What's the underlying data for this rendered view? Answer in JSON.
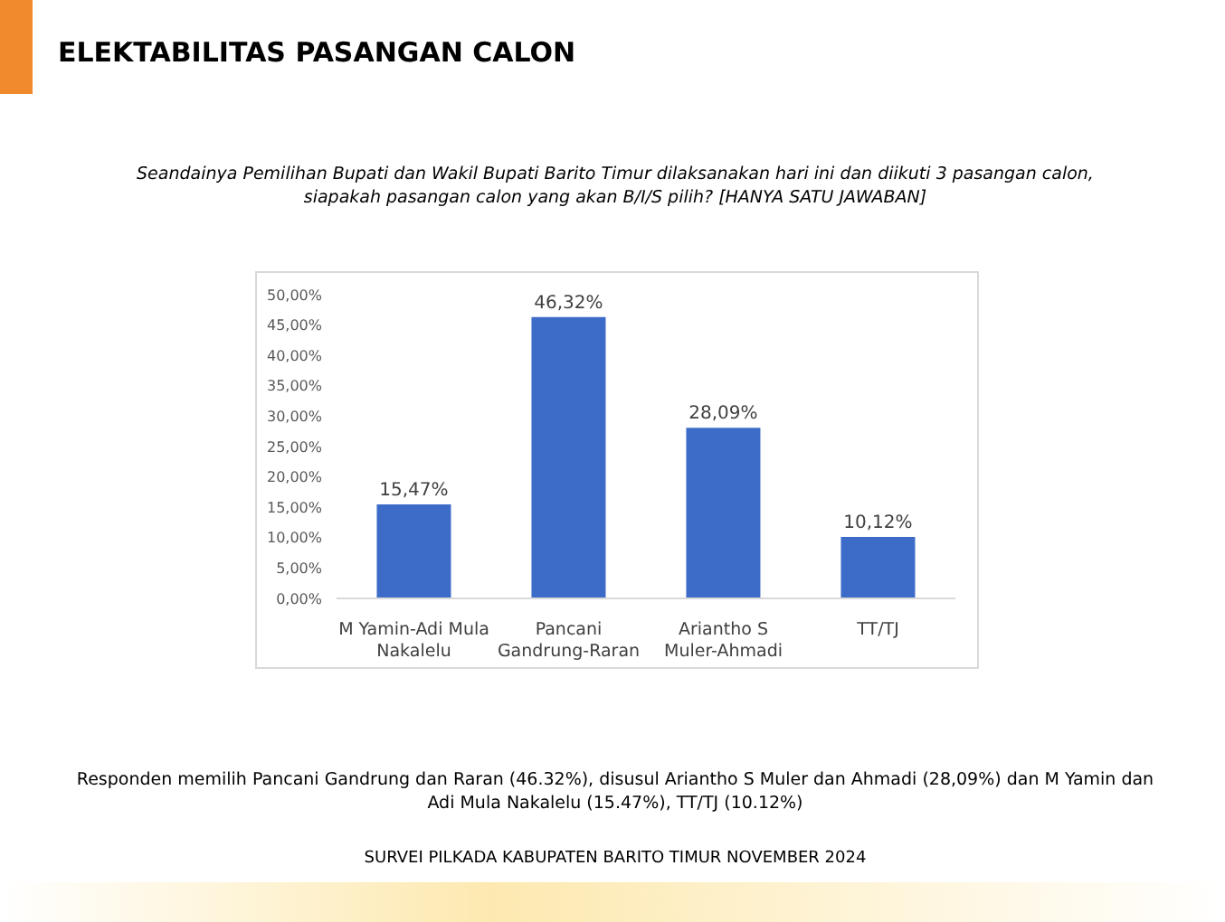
{
  "chart_data": {
    "type": "bar",
    "title": "ELEKTABILITAS PASANGAN CALON",
    "subtitle": "Seandainya Pemilihan Bupati dan Wakil Bupati Barito Timur dilaksanakan hari ini dan diikuti 3 pasangan calon, siapakah pasangan calon yang akan B/I/S pilih? [HANYA SATU JAWABAN]",
    "categories": [
      "M Yamin-Adi Mula Nakalelu",
      "Pancani Gandrung-Raran",
      "Ariantho S Muler-Ahmadi",
      "TT/TJ"
    ],
    "values": [
      15.47,
      46.32,
      28.09,
      10.12
    ],
    "value_labels": [
      "15,47%",
      "46,32%",
      "28,09%",
      "10,12%"
    ],
    "color": "#3d6cc8",
    "ylim": [
      0,
      50
    ],
    "yticks": [
      {
        "value": 0,
        "label": "0,00%"
      },
      {
        "value": 5,
        "label": "5,00%"
      },
      {
        "value": 10,
        "label": "10,00%"
      },
      {
        "value": 15,
        "label": "15,00%"
      },
      {
        "value": 20,
        "label": "20,00%"
      },
      {
        "value": 25,
        "label": "25,00%"
      },
      {
        "value": 30,
        "label": "30,00%"
      },
      {
        "value": 35,
        "label": "35,00%"
      },
      {
        "value": 40,
        "label": "40,00%"
      },
      {
        "value": 45,
        "label": "45,00%"
      },
      {
        "value": 50,
        "label": "50,00%"
      }
    ],
    "grid": false,
    "legend": false,
    "annotations": [
      "Responden memilih Pancani Gandrung dan Raran (46.32%), disusul Ariantho S Muler dan Ahmadi  (28,09%) dan M Yamin dan Adi Mula Nakalelu (15.47%), TT/TJ (10.12%)",
      "SURVEI PILKADA KABUPATEN BARITO TIMUR NOVEMBER 2024"
    ]
  }
}
